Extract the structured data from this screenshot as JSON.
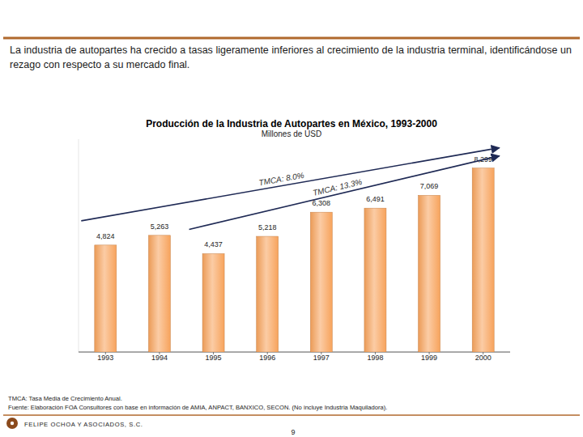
{
  "header": {
    "text": "La industria de autopartes ha crecido a tasas ligeramente inferiores al crecimiento de la industria terminal, identificándose un rezago con respecto a su mercado final."
  },
  "chart_data": {
    "type": "bar",
    "title": "Producción de la Industria de Autopartes en México, 1993-2000",
    "subtitle": "Millones de USD",
    "categories": [
      "1993",
      "1994",
      "1995",
      "1996",
      "1997",
      "1998",
      "1999",
      "2000"
    ],
    "values": [
      4824,
      5263,
      4437,
      5218,
      6308,
      6491,
      7069,
      8299
    ],
    "value_labels": [
      "4,824",
      "5,263",
      "4,437",
      "5,218",
      "6,308",
      "6,491",
      "7,069",
      "8,299"
    ],
    "color": "#f7a35c",
    "ylim": [
      0,
      9600
    ],
    "tick_labels": "x",
    "grid": false,
    "data_labels": true,
    "annotations": [
      {
        "text": "TMCA: 8.0%",
        "from": "1993",
        "to": "2000"
      },
      {
        "text": "TMCA: 13.3%",
        "from": "1995",
        "to": "2000"
      }
    ]
  },
  "footer": {
    "notes": [
      "TMCA: Tasa Media de Crecimiento Anual.",
      "Fuente: Elaboración FOA Consultores con base en información de AMIA, ANPACT, BANXICO, SECON. (No incluye Industria Maquiladora)."
    ],
    "company": "FELIPE OCHOA Y ASOCIADOS, S.C.",
    "page": 9
  }
}
